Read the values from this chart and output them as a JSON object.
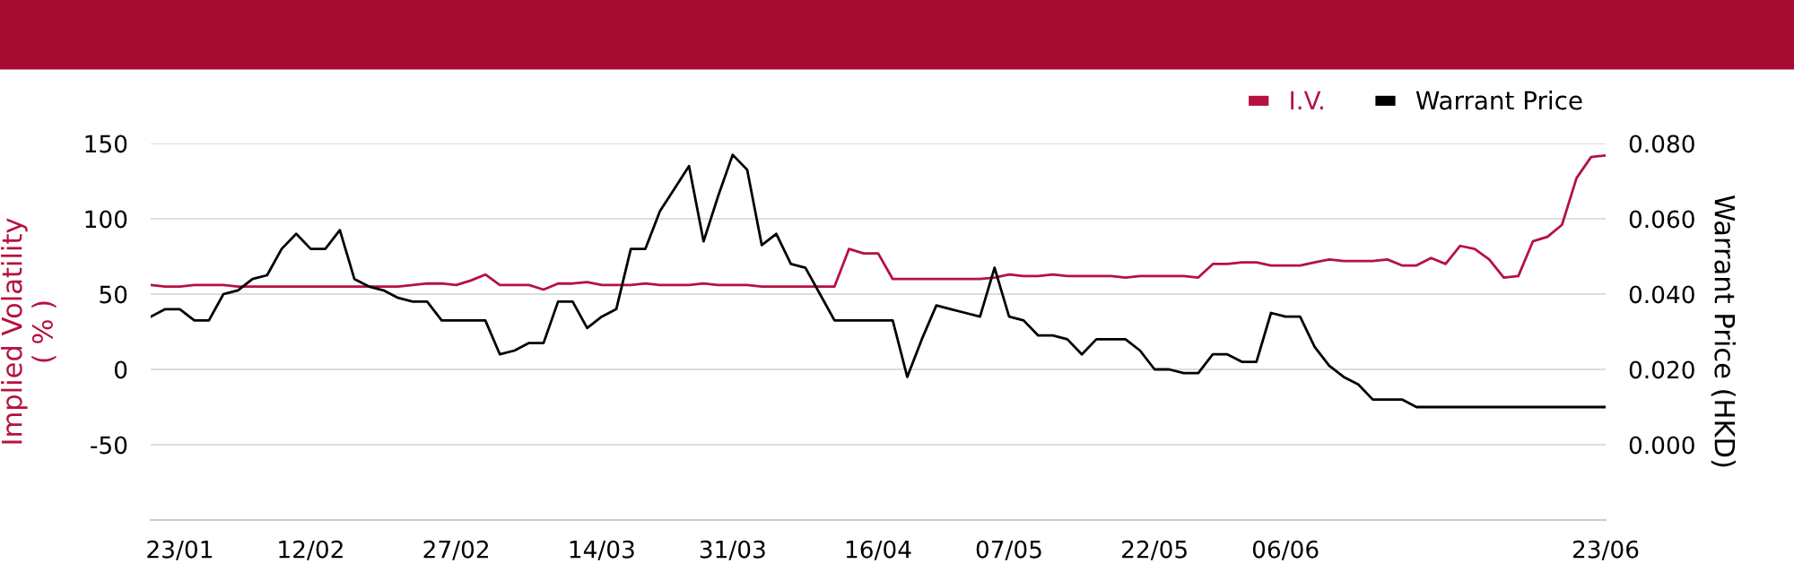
{
  "chart_data": {
    "type": "line",
    "categories": [
      null,
      null,
      "23/01",
      null,
      null,
      null,
      null,
      null,
      null,
      null,
      null,
      "12/02",
      null,
      null,
      null,
      null,
      null,
      null,
      null,
      null,
      null,
      "27/02",
      null,
      null,
      null,
      null,
      null,
      null,
      null,
      null,
      null,
      "14/03",
      null,
      null,
      null,
      null,
      null,
      null,
      null,
      null,
      "31/03",
      null,
      null,
      null,
      null,
      null,
      null,
      null,
      null,
      null,
      "16/04",
      null,
      null,
      null,
      null,
      null,
      null,
      null,
      null,
      "07/05",
      null,
      null,
      null,
      null,
      null,
      null,
      null,
      null,
      null,
      "22/05",
      null,
      null,
      null,
      null,
      null,
      null,
      null,
      null,
      "06/06",
      null,
      null,
      null,
      null,
      null,
      null,
      null,
      null,
      null,
      null,
      null,
      null,
      null,
      null,
      null,
      null,
      null,
      null,
      null,
      null,
      null,
      "23/06"
    ],
    "series": [
      {
        "name": "I.V.",
        "color": "#b5123f",
        "values": [
          56,
          55,
          55,
          56,
          56,
          56,
          55,
          55,
          55,
          55,
          55,
          55,
          55,
          55,
          55,
          55,
          55,
          55,
          56,
          57,
          57,
          56,
          59,
          63,
          56,
          56,
          56,
          53,
          57,
          57,
          58,
          56,
          56,
          56,
          57,
          56,
          56,
          56,
          57,
          56,
          56,
          56,
          55,
          55,
          55,
          55,
          55,
          55,
          80,
          77,
          77,
          60,
          60,
          60,
          60,
          60,
          60,
          60,
          61,
          63,
          62,
          62,
          63,
          62,
          62,
          62,
          62,
          61,
          62,
          62,
          62,
          62,
          61,
          70,
          70,
          71,
          71,
          69,
          69,
          69,
          71,
          73,
          72,
          72,
          72,
          73,
          69,
          69,
          74,
          70,
          82,
          80,
          73,
          61,
          62,
          85,
          88,
          96,
          127,
          141,
          142
        ]
      },
      {
        "name": "Warrant Price",
        "color": "#000000",
        "axis": "y2",
        "values": [
          0.034,
          0.036,
          0.036,
          0.033,
          0.033,
          0.04,
          0.041,
          0.044,
          0.045,
          0.052,
          0.056,
          0.052,
          0.052,
          0.057,
          0.044,
          0.042,
          0.041,
          0.039,
          0.038,
          0.038,
          0.033,
          0.033,
          0.033,
          0.033,
          0.024,
          0.025,
          0.027,
          0.027,
          0.038,
          0.038,
          0.031,
          0.034,
          0.036,
          0.052,
          0.052,
          0.062,
          0.068,
          0.074,
          0.054,
          0.066,
          0.077,
          0.073,
          0.053,
          0.056,
          0.048,
          0.047,
          0.04,
          0.033,
          0.033,
          0.033,
          0.033,
          0.033,
          0.018,
          0.028,
          0.037,
          0.036,
          0.035,
          0.034,
          0.047,
          0.034,
          0.033,
          0.029,
          0.029,
          0.028,
          0.024,
          0.028,
          0.028,
          0.028,
          0.025,
          0.02,
          0.02,
          0.019,
          0.019,
          0.024,
          0.024,
          0.022,
          0.022,
          0.035,
          0.034,
          0.034,
          0.026,
          0.021,
          0.018,
          0.016,
          0.012,
          0.012,
          0.012,
          0.01,
          0.01,
          0.01,
          0.01,
          0.01,
          0.01,
          0.01,
          0.01,
          0.01,
          0.01,
          0.01,
          0.01,
          0.01,
          0.01
        ]
      }
    ],
    "ylabel": "Implied Volatility\n( % )",
    "y2label": "Warrant Price (HKD)",
    "ylim": [
      -100,
      150
    ],
    "yticks": [
      -50,
      0,
      50,
      100,
      150
    ],
    "y2lim": [
      -0.02,
      0.08
    ],
    "y2ticks": [
      {
        "value": 0,
        "label": "0.000"
      },
      {
        "value": 0.02,
        "label": "0.020"
      },
      {
        "value": 0.04,
        "label": "0.040"
      },
      {
        "value": 0.06,
        "label": "0.060"
      },
      {
        "value": 0.08,
        "label": "0.080"
      }
    ],
    "grid": "y",
    "legend": "top right",
    "marker": "none",
    "line_style": "solid"
  }
}
